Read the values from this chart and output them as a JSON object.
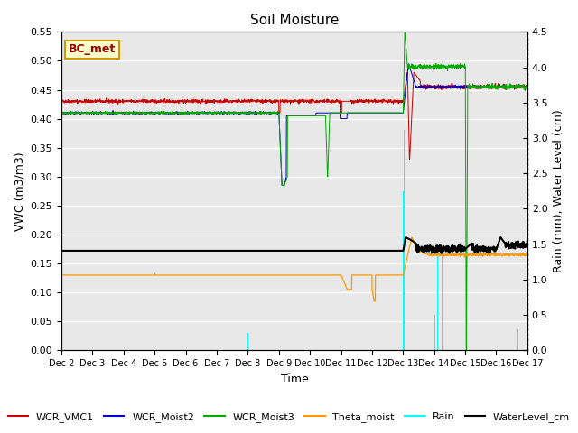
{
  "title": "Soil Moisture",
  "ylabel_left": "VWC (m3/m3)",
  "ylabel_right": "Rain (mm), Water Level (cm)",
  "xlabel": "Time",
  "ylim_left": [
    0.0,
    0.55
  ],
  "ylim_right": [
    0.0,
    4.5
  ],
  "yticks_left": [
    0.0,
    0.05,
    0.1,
    0.15,
    0.2,
    0.25,
    0.3,
    0.35,
    0.4,
    0.45,
    0.5,
    0.55
  ],
  "yticks_right": [
    0.0,
    0.5,
    1.0,
    1.5,
    2.0,
    2.5,
    3.0,
    3.5,
    4.0,
    4.5
  ],
  "annotation": "BC_met",
  "n_days": 15,
  "n_points": 2160,
  "colors": {
    "WCR_VMC1": "#cc0000",
    "WCR_Moist2": "#0000cc",
    "WCR_Moist3": "#00aa00",
    "Theta_moist": "#ff9900",
    "Rain": "cyan",
    "WaterLevel_cm": "black"
  },
  "background_color": "#e8e8e8",
  "grid_color": "white",
  "title_fontsize": 11,
  "label_fontsize": 9,
  "tick_fontsize": 8,
  "legend_fontsize": 8
}
